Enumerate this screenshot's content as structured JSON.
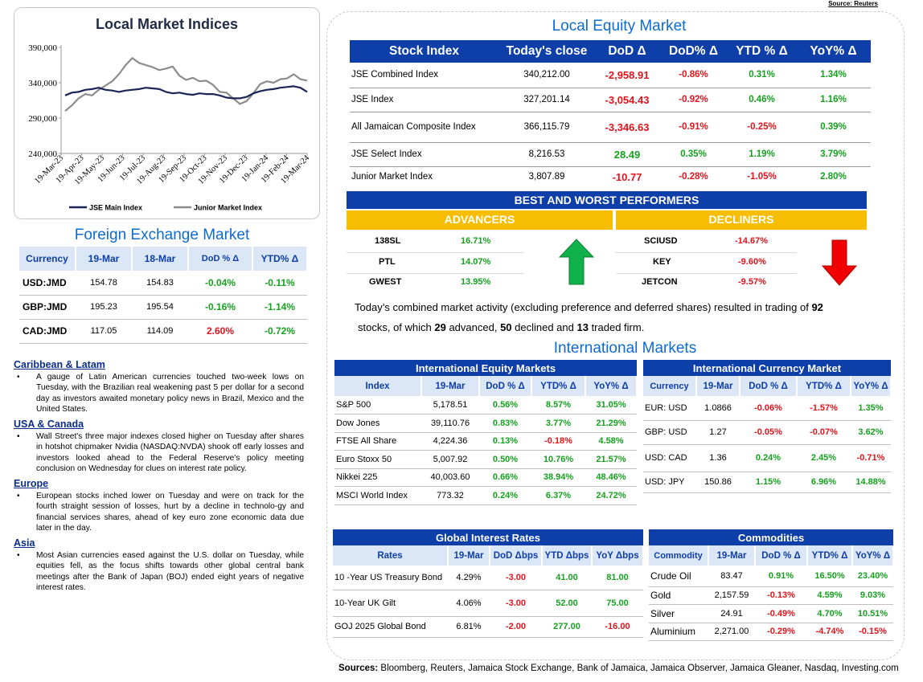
{
  "source_top": "Source: Reuters",
  "chart": {
    "title": "Local Market Indices"
  },
  "chart_data": {
    "type": "line",
    "title": "Local Market Indices",
    "xlabel": "",
    "ylabel": "",
    "ylim": [
      240000,
      390000
    ],
    "yticks": [
      "240,000",
      "290,000",
      "340,000",
      "390,000"
    ],
    "xticks": [
      "19-Mar-23",
      "19-Apr-23",
      "19-May-23",
      "19-Jun-23",
      "19-Jul-23",
      "19-Aug-23",
      "19-Sep-23",
      "19-Oct-23",
      "19-Nov-23",
      "19-Dec-23",
      "19-Jan-24",
      "19-Feb-24",
      "19-Mar-24"
    ],
    "legend": "bottom",
    "series": [
      {
        "name": "JSE Main Index",
        "color": "#1a2557",
        "values": [
          322000,
          326000,
          327000,
          330000,
          331000,
          333000,
          330000,
          329000,
          327000,
          329000,
          330000,
          331000,
          333000,
          332000,
          331000,
          327000,
          325000,
          326000,
          324000,
          323000,
          325000,
          324000,
          324000,
          322000,
          319000,
          318000,
          318000,
          320000,
          325000,
          328000,
          330000,
          331000,
          333000,
          334000,
          335000,
          333000,
          327000
        ]
      },
      {
        "name": "Junior Market Index",
        "color": "#8c8c8c",
        "values": [
          300000,
          308000,
          318000,
          324000,
          322000,
          330000,
          336000,
          342000,
          352000,
          365000,
          375000,
          368000,
          365000,
          362000,
          358000,
          360000,
          363000,
          350000,
          344000,
          347000,
          342000,
          343000,
          337000,
          327000,
          326000,
          318000,
          310000,
          314000,
          325000,
          338000,
          342000,
          340000,
          345000,
          346000,
          352000,
          345000,
          343000
        ]
      }
    ]
  },
  "fx": {
    "title": "Foreign Exchange Market",
    "headers": [
      "Currency",
      "19-Mar",
      "18-Mar",
      "DoD % Δ",
      "YTD% Δ"
    ],
    "rows": [
      {
        "cur": "USD:JMD",
        "a": "154.78",
        "b": "154.83",
        "dod": "-0.04%",
        "ytd": "-0.11%"
      },
      {
        "cur": "GBP:JMD",
        "a": "195.23",
        "b": "195.54",
        "dod": "-0.16%",
        "ytd": "-1.14%"
      },
      {
        "cur": "CAD:JMD",
        "a": "117.05",
        "b": "114.09",
        "dod": "2.60%",
        "ytd": "-0.72%"
      }
    ]
  },
  "news": [
    {
      "heading": "Caribbean & Latam",
      "text": "A gauge of Latin American currencies touched two-week lows on Tuesday, with the Brazilian real weakening past 5 per dollar for a second day as investors awaited monetary policy news in Brazil, Mexico and the United States."
    },
    {
      "heading": "USA & Canada",
      "text": "Wall Street's three major indexes closed higher on Tuesday after shares in hotshot chipmaker Nvidia (NASDAQ:NVDA) shook off early losses and investors looked ahead to the Federal Reserve's policy meeting conclusion on Wednesday for clues on interest rate policy."
    },
    {
      "heading": "Europe",
      "text": "European stocks inched lower on Tuesday and were on track for the fourth straight session of losses, hurt by a decline in technolo-gy and financial services shares, ahead of key euro zone economic data due later in the day."
    },
    {
      "heading": "Asia",
      "text": "Most Asian currencies eased against the U.S. dollar on Tuesday, while equities fell, as the focus shifts towards other global central bank meetings after the Bank of Japan (BOJ) ended eight years of negative interest rates."
    }
  ],
  "equity": {
    "title": "Local Equity Market",
    "headers": [
      "Stock Index",
      "Today's close",
      "DoD  Δ",
      "DoD% Δ",
      "YTD % Δ",
      "YoY% Δ"
    ],
    "rows": [
      {
        "name": "JSE Combined Index",
        "close": "340,212.00",
        "dod": "-2,958.91",
        "dodp": "-0.86%",
        "ytd": "0.31%",
        "yoy": "1.34%"
      },
      {
        "name": "JSE Index",
        "close": "327,201.14",
        "dod": "-3,054.43",
        "dodp": "-0.92%",
        "ytd": "0.46%",
        "yoy": "1.16%"
      },
      {
        "name": "All Jamaican Composite Index",
        "close": "366,115.79",
        "dod": "-3,346.63",
        "dodp": "-0.91%",
        "ytd": "-0.25%",
        "yoy": "0.39%"
      },
      {
        "name": "JSE Select Index",
        "close": "8,216.53",
        "dod": "28.49",
        "dodp": "0.35%",
        "ytd": "1.19%",
        "yoy": "3.79%"
      },
      {
        "name": "Junior Market Index",
        "close": "3,807.89",
        "dod": "-10.77",
        "dodp": "-0.28%",
        "ytd": "-1.05%",
        "yoy": "2.80%"
      }
    ]
  },
  "performers": {
    "title": "BEST AND WORST PERFORMERS",
    "advancers_label": "ADVANCERS",
    "decliners_label": "DECLINERS",
    "advancers": [
      {
        "sym": "138SL",
        "pct": "16.71%"
      },
      {
        "sym": "PTL",
        "pct": "14.07%"
      },
      {
        "sym": "GWEST",
        "pct": "13.95%"
      }
    ],
    "decliners": [
      {
        "sym": "SCIUSD",
        "pct": "-14.67%"
      },
      {
        "sym": "KEY",
        "pct": "-9.60%"
      },
      {
        "sym": "JETCON",
        "pct": "-9.57%"
      }
    ]
  },
  "summary": {
    "p1": "Today’s combined market activity (excluding preference and deferred shares) resulted in trading of ",
    "n_total": "92",
    "p2": "stocks, of which ",
    "n_adv": "29",
    "p3": " advanced, ",
    "n_dec": "50",
    "p4": " declined and ",
    "n_firm": "13",
    "p5": " traded firm."
  },
  "intl_title": "International Markets",
  "intl_equity": {
    "title": "International Equity Markets",
    "headers": [
      "Index",
      "19-Mar",
      "DoD % Δ",
      "YTD% Δ",
      "YoY% Δ"
    ],
    "rows": [
      {
        "name": "S&P 500",
        "v": "5,178.51",
        "dod": "0.56%",
        "ytd": "8.57%",
        "yoy": "31.05%"
      },
      {
        "name": "Dow Jones",
        "v": "39,110.76",
        "dod": "0.83%",
        "ytd": "3.77%",
        "yoy": "21.29%"
      },
      {
        "name": "FTSE All Share",
        "v": "4,224.36",
        "dod": "0.13%",
        "ytd": "-0.18%",
        "yoy": "4.58%"
      },
      {
        "name": "Euro Stoxx 50",
        "v": "5,007.92",
        "dod": "0.50%",
        "ytd": "10.76%",
        "yoy": "21.57%"
      },
      {
        "name": "Nikkei 225",
        "v": "40,003.60",
        "dod": "0.66%",
        "ytd": "38.94%",
        "yoy": "48.46%"
      },
      {
        "name": "MSCI World Index",
        "v": "773.32",
        "dod": "0.24%",
        "ytd": "6.37%",
        "yoy": "24.72%"
      }
    ]
  },
  "intl_currency": {
    "title": "International Currency Market",
    "headers": [
      "Currency",
      "19-Mar",
      "DoD % Δ",
      "YTD% Δ",
      "YoY% Δ"
    ],
    "rows": [
      {
        "name": "EUR: USD",
        "v": "1.0866",
        "dod": "-0.06%",
        "ytd": "-1.57%",
        "yoy": "1.35%"
      },
      {
        "name": "GBP: USD",
        "v": "1.27",
        "dod": "-0.05%",
        "ytd": "-0.07%",
        "yoy": "3.62%"
      },
      {
        "name": "USD: CAD",
        "v": "1.36",
        "dod": "0.24%",
        "ytd": "2.45%",
        "yoy": "-0.71%"
      },
      {
        "name": "USD: JPY",
        "v": "150.86",
        "dod": "1.15%",
        "ytd": "6.96%",
        "yoy": "14.88%"
      }
    ]
  },
  "rates": {
    "title": "Global Interest Rates",
    "headers": [
      "Rates",
      "19-Mar",
      "DoD Δbps",
      "YTD Δbps",
      "YoY Δbps"
    ],
    "rows": [
      {
        "name": "10 -Year US Treasury Bond",
        "v": "4.29%",
        "dod": "-3.00",
        "ytd": "41.00",
        "yoy": "81.00"
      },
      {
        "name": "10-Year UK Gilt",
        "v": "4.06%",
        "dod": "-3.00",
        "ytd": "52.00",
        "yoy": "75.00"
      },
      {
        "name": "GOJ 2025 Global Bond",
        "v": "6.81%",
        "dod": "-2.00",
        "ytd": "277.00",
        "yoy": "-16.00"
      }
    ]
  },
  "commodities": {
    "title": "Commodities",
    "headers": [
      "Commodity",
      "19-Mar",
      "DoD % Δ",
      "YTD% Δ",
      "YoY% Δ"
    ],
    "rows": [
      {
        "name": "Crude Oil",
        "v": "83.47",
        "dod": "0.91%",
        "ytd": "16.50%",
        "yoy": "23.40%"
      },
      {
        "name": "Gold",
        "v": "2,157.59",
        "dod": "-0.13%",
        "ytd": "4.59%",
        "yoy": "9.03%"
      },
      {
        "name": "Silver",
        "v": "24.91",
        "dod": "-0.49%",
        "ytd": "4.70%",
        "yoy": "10.51%"
      },
      {
        "name": "Aluminium",
        "v": "2,271.00",
        "dod": "-0.29%",
        "ytd": "-4.74%",
        "yoy": "-0.15%"
      }
    ]
  },
  "sources": {
    "label": "Sources:",
    "text": " Bloomberg, Reuters, Jamaica Stock Exchange, Bank of Jamaica, Jamaica Observer, Jamaica Gleaner, Nasdaq, Investing.com"
  }
}
